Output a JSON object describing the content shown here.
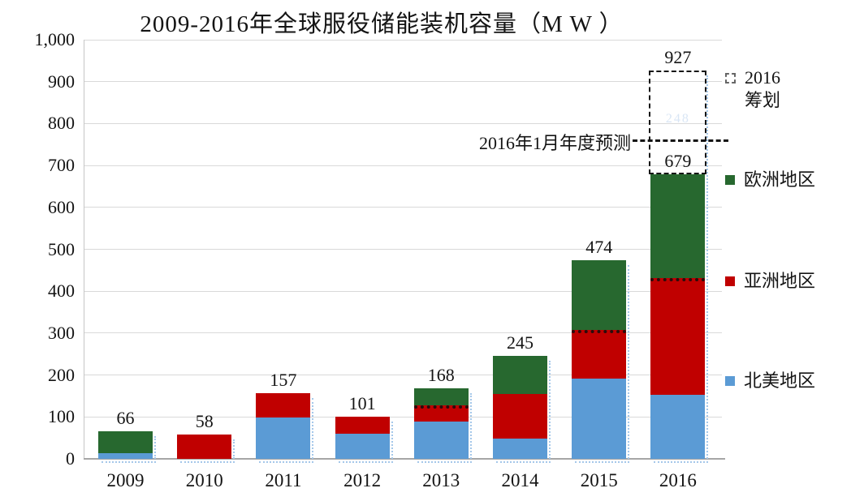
{
  "title": "2009-2016年全球服役储能装机容量（M W ）",
  "chart_data": {
    "type": "bar",
    "stacked": true,
    "title": "2009-2016年全球服役储能装机容量（MW）",
    "unit": "MW",
    "categories": [
      "2009",
      "2010",
      "2011",
      "2012",
      "2013",
      "2014",
      "2015",
      "2016"
    ],
    "series": [
      {
        "id": "north-america",
        "name": "北美地区",
        "color": "#5B9BD5",
        "values": [
          13,
          0,
          99,
          60,
          89,
          49,
          192,
          152
        ]
      },
      {
        "id": "asia",
        "name": "亚洲地区",
        "color": "#C00000",
        "values": [
          0,
          58,
          58,
          41,
          38,
          106,
          116,
          279
        ]
      },
      {
        "id": "europe",
        "name": "欧洲地区",
        "color": "#27682F",
        "values": [
          53,
          0,
          0,
          0,
          41,
          90,
          166,
          248
        ]
      }
    ],
    "totals": [
      "66",
      "58",
      "157",
      "101",
      "168",
      "245",
      "474",
      "679"
    ],
    "ylim": [
      0,
      1000
    ],
    "yticks": [
      {
        "label": "1,000",
        "value": 1000
      },
      {
        "label": "900",
        "value": 900
      },
      {
        "label": "800",
        "value": 800
      },
      {
        "label": "700",
        "value": 700
      },
      {
        "label": "600",
        "value": 600
      },
      {
        "label": "500",
        "value": 500
      },
      {
        "label": "400",
        "value": 400
      },
      {
        "label": "300",
        "value": 300
      },
      {
        "label": "200",
        "value": 200
      },
      {
        "label": "100",
        "value": 100
      },
      {
        "label": "0",
        "value": 0
      }
    ],
    "asia_dotted_years": [
      "2013",
      "2015",
      "2016"
    ],
    "planned": {
      "category": "2016",
      "total": 927,
      "label": "927",
      "increment_label": "248",
      "legend_line1": "2016",
      "legend_line2": "筹划"
    },
    "forecast": {
      "label": "2016年1月年度预测",
      "value": 760
    },
    "legend_position": "right",
    "grid": "horizontal"
  },
  "legend": {
    "items": [
      {
        "id": "planned-2016",
        "line1": "2016",
        "line2": "筹划",
        "swatch": "dashed"
      },
      {
        "id": "europe",
        "label": "欧洲地区",
        "swatch": "#27682F"
      },
      {
        "id": "asia",
        "label": "亚洲地区",
        "swatch": "#C00000"
      },
      {
        "id": "north-america",
        "label": "北美地区",
        "swatch": "#5B9BD5"
      }
    ]
  }
}
